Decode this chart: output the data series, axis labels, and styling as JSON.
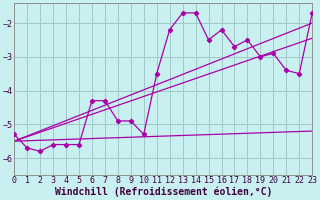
{
  "title": "",
  "xlabel": "Windchill (Refroidissement éolien,°C)",
  "ylabel": "",
  "bg_color": "#c8f0f0",
  "line_color": "#aa00aa",
  "grid_color": "#a0c8c8",
  "xlim": [
    0,
    23
  ],
  "ylim": [
    -6.5,
    -1.4
  ],
  "yticks": [
    -6,
    -5,
    -4,
    -3,
    -2
  ],
  "xticks": [
    0,
    1,
    2,
    3,
    4,
    5,
    6,
    7,
    8,
    9,
    10,
    11,
    12,
    13,
    14,
    15,
    16,
    17,
    18,
    19,
    20,
    21,
    22,
    23
  ],
  "data_x": [
    0,
    1,
    2,
    3,
    4,
    5,
    6,
    7,
    8,
    9,
    10,
    11,
    12,
    13,
    14,
    15,
    16,
    17,
    18,
    19,
    20,
    21,
    22,
    23
  ],
  "data_y": [
    -5.3,
    -5.7,
    -5.8,
    -5.6,
    -5.6,
    -5.6,
    -4.3,
    -4.3,
    -4.9,
    -4.9,
    -5.3,
    -3.5,
    -2.2,
    -1.7,
    -1.7,
    -2.5,
    -2.2,
    -2.7,
    -2.5,
    -3.0,
    -2.9,
    -3.4,
    -3.5,
    -1.7
  ],
  "trend_lines": [
    {
      "x0": 0,
      "y0": -5.5,
      "x1": 23,
      "y1": -2.0
    },
    {
      "x0": 0,
      "y0": -5.5,
      "x1": 23,
      "y1": -2.45
    },
    {
      "x0": 0,
      "y0": -5.5,
      "x1": 23,
      "y1": -5.2
    }
  ],
  "tick_fontsize": 6,
  "label_fontsize": 7,
  "tick_color": "#400040",
  "label_color": "#400040"
}
